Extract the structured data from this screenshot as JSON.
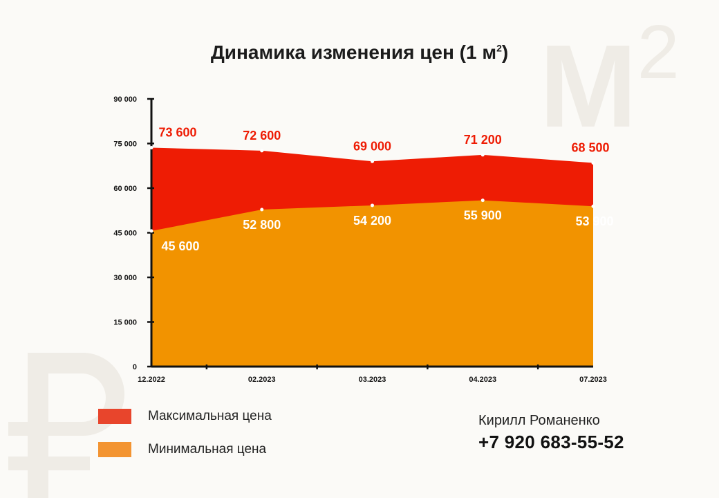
{
  "watermarks": {
    "unit_main": "М",
    "unit_power": "2"
  },
  "title_main": "Динамика изменения цен (1 м",
  "title_power": "2",
  "title_close": ")",
  "chart_data": {
    "type": "area",
    "categories": [
      "12.2022",
      "02.2023",
      "03.2023",
      "04.2023",
      "07.2023"
    ],
    "series": [
      {
        "name": "Максимальная цена",
        "values": [
          73600,
          72600,
          69000,
          71200,
          68500
        ],
        "color": "#ee1c04",
        "value_labels": [
          "73 600",
          "72 600",
          "69 000",
          "71 200",
          "68 500"
        ]
      },
      {
        "name": "Минимальная цена",
        "values": [
          45600,
          52800,
          54200,
          55900,
          53900
        ],
        "color": "#f29300",
        "value_labels": [
          "45 600",
          "52 800",
          "54 200",
          "55 900",
          "53 900"
        ]
      }
    ],
    "yticks": [
      0,
      15000,
      30000,
      45000,
      60000,
      75000,
      90000
    ],
    "ytick_labels": [
      "0",
      "15 000",
      "30 000",
      "45 000",
      "60 000",
      "75 000",
      "90 000"
    ],
    "ylim": [
      0,
      90000
    ],
    "grid": false,
    "legend_position": "bottom-left"
  },
  "legend": [
    {
      "label": "Максимальная цена",
      "color": "#e8452c"
    },
    {
      "label": "Минимальная цена",
      "color": "#f39431"
    }
  ],
  "contact": {
    "name": "Кирилл Романенко",
    "phone": "+7 920 683-55-52"
  }
}
